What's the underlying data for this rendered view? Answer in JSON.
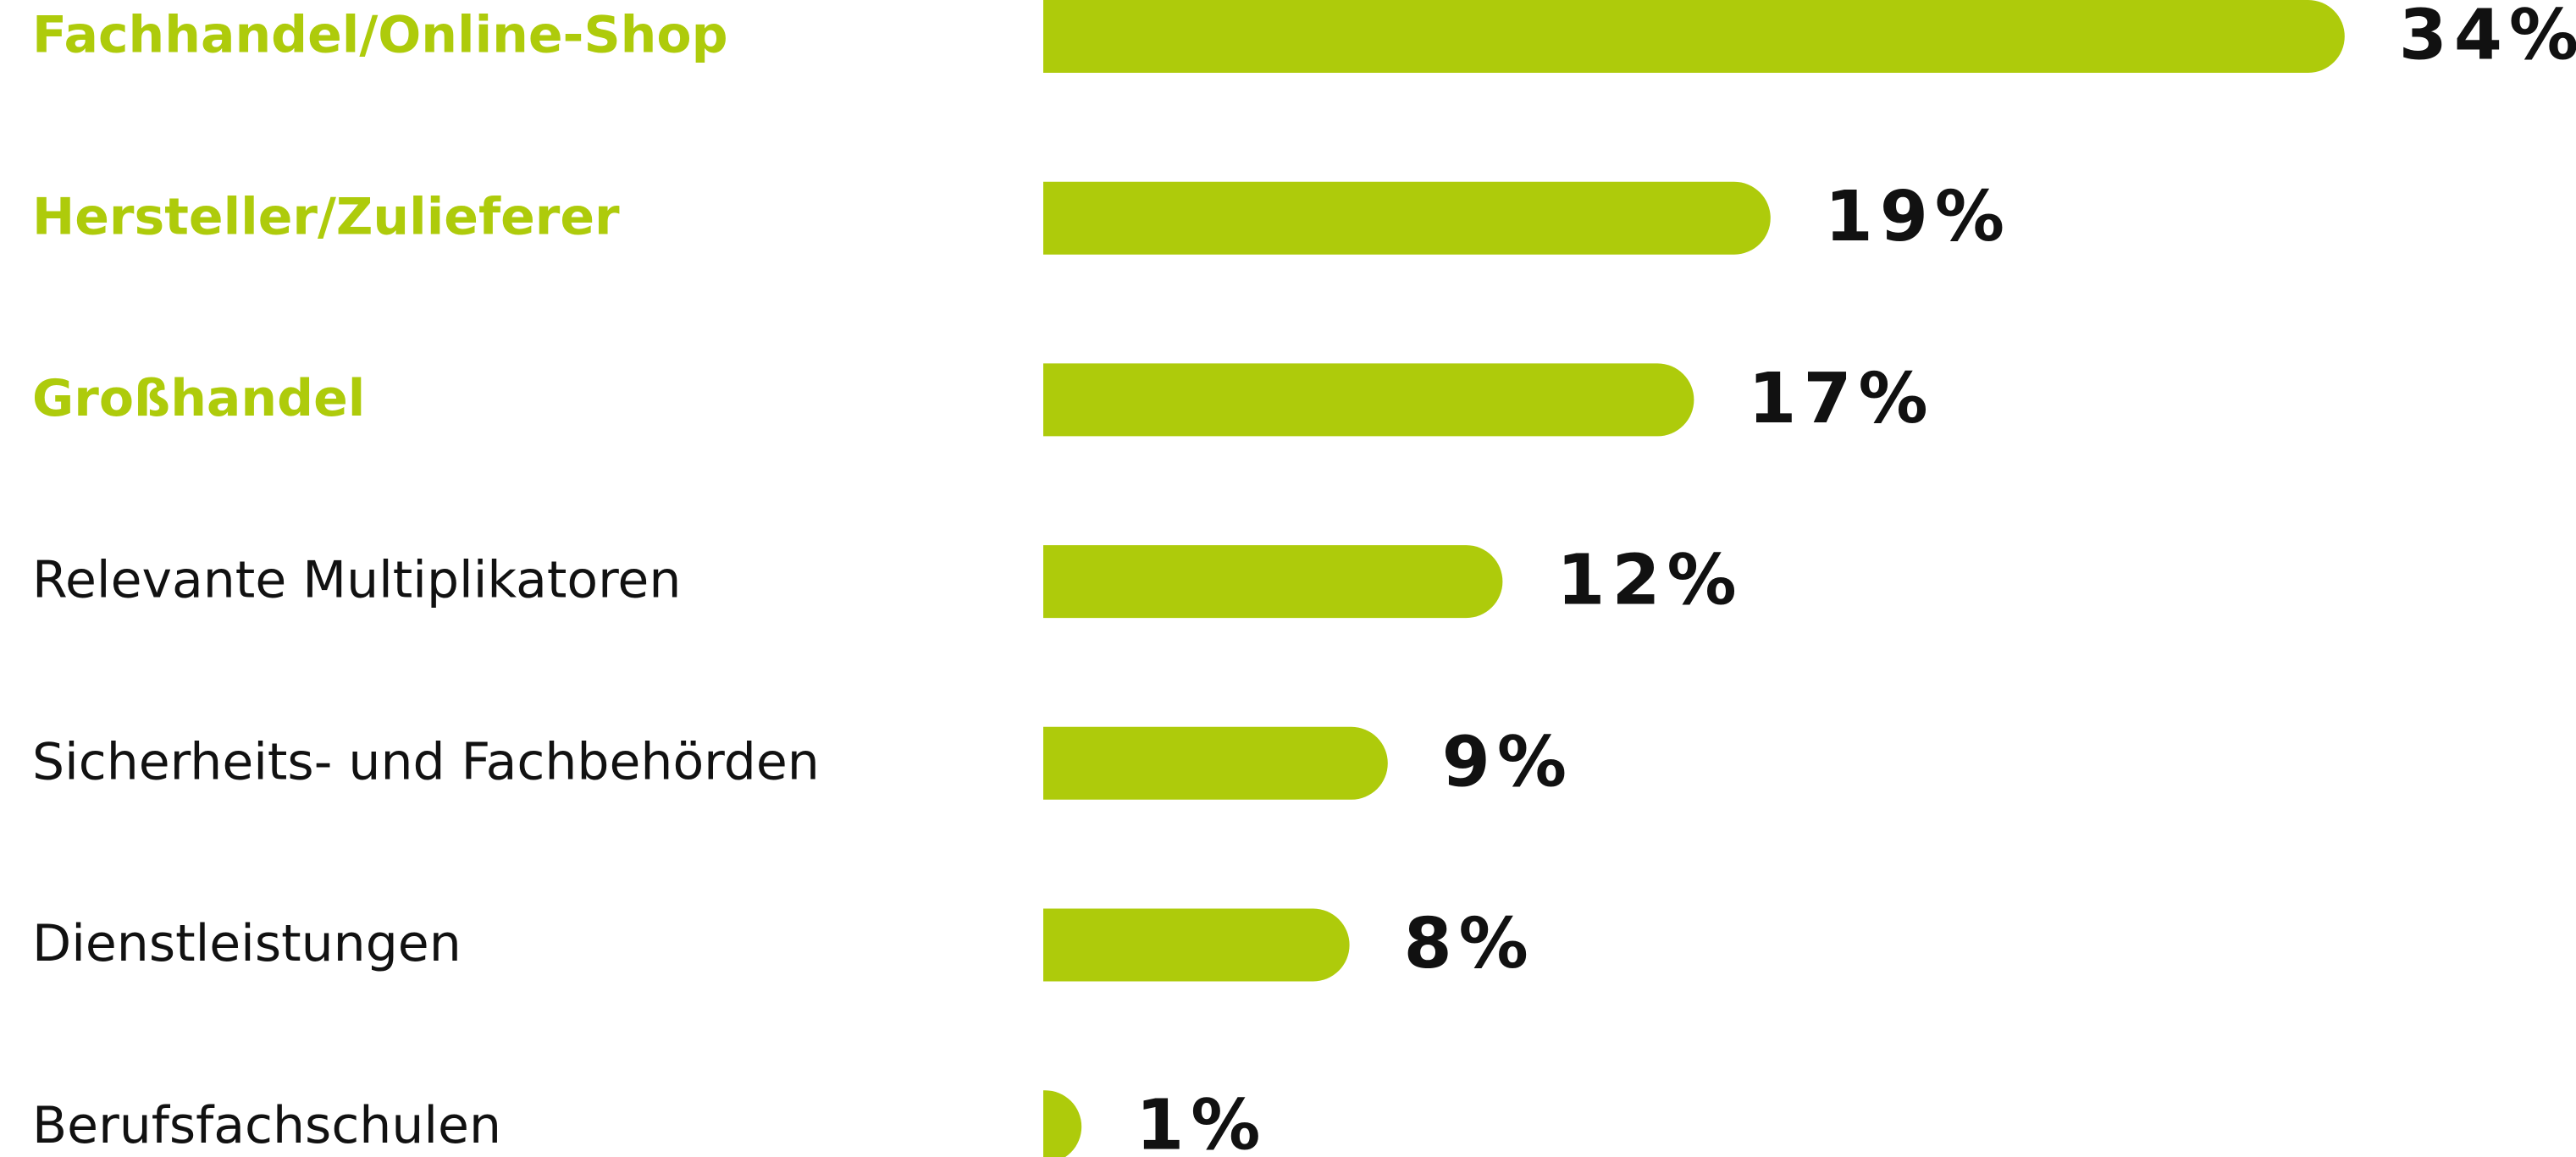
{
  "chart_data": {
    "type": "hbar",
    "categories": [
      "Fachhandel/Online-Shop",
      "Hersteller/Zulieferer",
      "Großhandel",
      "Relevante Multiplikatoren",
      "Sicherheits- und Fachbehörden",
      "Dienstleistungen",
      "Berufsfachschulen"
    ],
    "values": [
      34,
      19,
      17,
      12,
      9,
      8,
      1
    ],
    "value_labels": [
      "34%",
      "19%",
      "17%",
      "12%",
      "9%",
      "8%",
      "1%"
    ],
    "highlight": [
      true,
      true,
      true,
      false,
      false,
      false,
      false
    ],
    "color": "#aecb0b"
  }
}
